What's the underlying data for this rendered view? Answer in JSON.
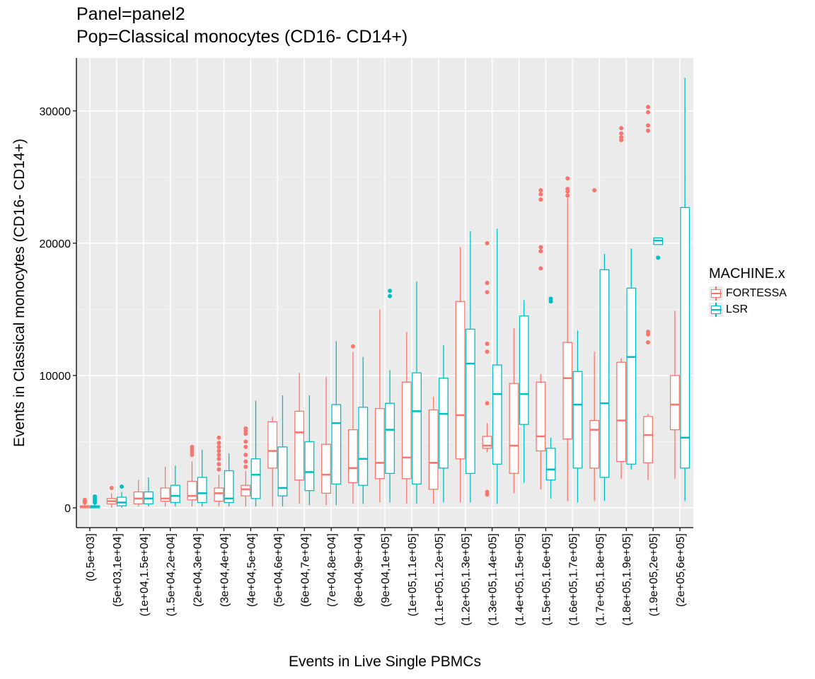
{
  "title_lines": [
    "Panel=panel2",
    "Pop=Classical monocytes (CD16- CD14+)"
  ],
  "legend": {
    "title": "MACHINE.x",
    "items": [
      {
        "label": "FORTESSA",
        "color": "#F8766D"
      },
      {
        "label": "LSR",
        "color": "#00BFC4"
      }
    ]
  },
  "chart_data": {
    "type": "boxplot",
    "xlabel": "Events in Live Single PBMCs",
    "ylabel": "Events in Classical monocytes (CD16- CD14+)",
    "ylim": [
      -1500,
      34000
    ],
    "yticks": [
      0,
      10000,
      20000,
      30000
    ],
    "grid": true,
    "legend_position": "right",
    "categories": [
      "(0,5e+03]",
      "(5e+03,1e+04]",
      "(1e+04,1.5e+04]",
      "(1.5e+04,2e+04]",
      "(2e+04,3e+04]",
      "(3e+04,4e+04]",
      "(4e+04,5e+04]",
      "(5e+04,6e+04]",
      "(6e+04,7e+04]",
      "(7e+04,8e+04]",
      "(8e+04,9e+04]",
      "(9e+04,1e+05]",
      "(1e+05,1.1e+05]",
      "(1.1e+05,1.2e+05]",
      "(1.2e+05,1.3e+05]",
      "(1.3e+05,1.4e+05]",
      "(1.4e+05,1.5e+05]",
      "(1.5e+05,1.6e+05]",
      "(1.6e+05,1.7e+05]",
      "(1.7e+05,1.8e+05]",
      "(1.8e+05,1.9e+05]",
      "(1.9e+05,2e+05]",
      "(2e+05,6e+05]"
    ],
    "series": [
      {
        "name": "FORTESSA",
        "color": "#F8766D",
        "boxes": [
          {
            "min": 0,
            "q1": 0,
            "median": 100,
            "q3": 150,
            "max": 300,
            "outliers": [
              400,
              500,
              600
            ]
          },
          {
            "min": 0,
            "q1": 300,
            "median": 500,
            "q3": 700,
            "max": 1100,
            "outliers": [
              1500
            ]
          },
          {
            "min": 100,
            "q1": 300,
            "median": 700,
            "q3": 1200,
            "max": 2100,
            "outliers": []
          },
          {
            "min": 100,
            "q1": 500,
            "median": 700,
            "q3": 1500,
            "max": 3100,
            "outliers": []
          },
          {
            "min": 100,
            "q1": 600,
            "median": 900,
            "q3": 2000,
            "max": 3500,
            "outliers": [
              4000,
              4200,
              4400,
              4600
            ]
          },
          {
            "min": 100,
            "q1": 500,
            "median": 1100,
            "q3": 1500,
            "max": 2500,
            "outliers": [
              2900,
              3300,
              3700,
              4000,
              4300,
              4600,
              4900,
              5300
            ]
          },
          {
            "min": 100,
            "q1": 900,
            "median": 1400,
            "q3": 1700,
            "max": 2800,
            "outliers": [
              3100,
              3500,
              4000,
              4600,
              5000,
              5600,
              5800,
              6000
            ]
          },
          {
            "min": 100,
            "q1": 3000,
            "median": 4300,
            "q3": 6500,
            "max": 6900,
            "outliers": []
          },
          {
            "min": 300,
            "q1": 2100,
            "median": 5700,
            "q3": 7300,
            "max": 10200,
            "outliers": []
          },
          {
            "min": 200,
            "q1": 1100,
            "median": 2500,
            "q3": 4800,
            "max": 9900,
            "outliers": []
          },
          {
            "min": 300,
            "q1": 1900,
            "median": 3000,
            "q3": 5900,
            "max": 11800,
            "outliers": [
              12200
            ]
          },
          {
            "min": 400,
            "q1": 2200,
            "median": 3400,
            "q3": 7500,
            "max": 15000,
            "outliers": []
          },
          {
            "min": 300,
            "q1": 2200,
            "median": 3800,
            "q3": 9500,
            "max": 13300,
            "outliers": []
          },
          {
            "min": 300,
            "q1": 1400,
            "median": 3400,
            "q3": 7400,
            "max": 8400,
            "outliers": []
          },
          {
            "min": 400,
            "q1": 3700,
            "median": 7000,
            "q3": 15600,
            "max": 19700,
            "outliers": []
          },
          {
            "min": 4200,
            "q1": 4500,
            "median": 4700,
            "q3": 5400,
            "max": 6400,
            "outliers": [
              1000,
              1200,
              7900,
              11800,
              12400,
              16300,
              17000,
              20000
            ]
          },
          {
            "min": 1100,
            "q1": 2600,
            "median": 4700,
            "q3": 9400,
            "max": 13600,
            "outliers": []
          },
          {
            "min": 1400,
            "q1": 4300,
            "median": 5400,
            "q3": 9500,
            "max": 10100,
            "outliers": [
              18100,
              19400,
              19700,
              23300,
              23700,
              24000
            ]
          },
          {
            "min": 500,
            "q1": 5200,
            "median": 9800,
            "q3": 12500,
            "max": 23400,
            "outliers": [
              23600,
              23900,
              24100,
              24900
            ]
          },
          {
            "min": 500,
            "q1": 3000,
            "median": 5900,
            "q3": 6600,
            "max": 11800,
            "outliers": [
              24000
            ]
          },
          {
            "min": 2200,
            "q1": 3500,
            "median": 6600,
            "q3": 11000,
            "max": 11300,
            "outliers": [
              27800,
              28000,
              28300,
              28700
            ]
          },
          {
            "min": 2100,
            "q1": 3400,
            "median": 5500,
            "q3": 6900,
            "max": 7100,
            "outliers": [
              12500,
              13100,
              13300,
              28500,
              28900,
              29900,
              30300
            ]
          },
          {
            "min": 2200,
            "q1": 5900,
            "median": 7800,
            "q3": 10000,
            "max": 14900,
            "outliers": []
          }
        ]
      },
      {
        "name": "LSR",
        "color": "#00BFC4",
        "boxes": [
          {
            "min": 0,
            "q1": 0,
            "median": 100,
            "q3": 150,
            "max": 300,
            "outliers": [
              400,
              550,
              700,
              850
            ]
          },
          {
            "min": 0,
            "q1": 150,
            "median": 400,
            "q3": 800,
            "max": 1200,
            "outliers": [
              1600
            ]
          },
          {
            "min": 100,
            "q1": 300,
            "median": 700,
            "q3": 1200,
            "max": 2300,
            "outliers": []
          },
          {
            "min": 100,
            "q1": 400,
            "median": 900,
            "q3": 1700,
            "max": 3200,
            "outliers": []
          },
          {
            "min": 100,
            "q1": 400,
            "median": 1100,
            "q3": 2300,
            "max": 4400,
            "outliers": []
          },
          {
            "min": 100,
            "q1": 400,
            "median": 700,
            "q3": 2800,
            "max": 4100,
            "outliers": []
          },
          {
            "min": 100,
            "q1": 700,
            "median": 2500,
            "q3": 3700,
            "max": 8100,
            "outliers": []
          },
          {
            "min": 100,
            "q1": 900,
            "median": 1500,
            "q3": 4600,
            "max": 8500,
            "outliers": []
          },
          {
            "min": 200,
            "q1": 1300,
            "median": 2700,
            "q3": 5000,
            "max": 8500,
            "outliers": []
          },
          {
            "min": 200,
            "q1": 1800,
            "median": 6400,
            "q3": 7800,
            "max": 12600,
            "outliers": []
          },
          {
            "min": 300,
            "q1": 1700,
            "median": 3700,
            "q3": 7600,
            "max": 11400,
            "outliers": []
          },
          {
            "min": 400,
            "q1": 2600,
            "median": 5900,
            "q3": 7900,
            "max": 10400,
            "outliers": [
              16000,
              16400
            ]
          },
          {
            "min": 300,
            "q1": 1800,
            "median": 7300,
            "q3": 10200,
            "max": 17100,
            "outliers": []
          },
          {
            "min": 400,
            "q1": 3000,
            "median": 7100,
            "q3": 9800,
            "max": 12300,
            "outliers": []
          },
          {
            "min": 400,
            "q1": 2600,
            "median": 10900,
            "q3": 13500,
            "max": 20900,
            "outliers": []
          },
          {
            "min": 300,
            "q1": 3300,
            "median": 8600,
            "q3": 10800,
            "max": 21100,
            "outliers": []
          },
          {
            "min": 1900,
            "q1": 6300,
            "median": 8600,
            "q3": 14500,
            "max": 15700,
            "outliers": []
          },
          {
            "min": 700,
            "q1": 2100,
            "median": 2900,
            "q3": 4500,
            "max": 5300,
            "outliers": [
              15600,
              15800
            ]
          },
          {
            "min": 400,
            "q1": 3000,
            "median": 7800,
            "q3": 10300,
            "max": 13400,
            "outliers": []
          },
          {
            "min": 500,
            "q1": 2300,
            "median": 7900,
            "q3": 18000,
            "max": 19200,
            "outliers": []
          },
          {
            "min": 2900,
            "q1": 3300,
            "median": 11400,
            "q3": 16600,
            "max": 19600,
            "outliers": []
          },
          {
            "min": 19900,
            "q1": 19900,
            "median": 20200,
            "q3": 20400,
            "max": 20400,
            "outliers": [
              18900
            ]
          },
          {
            "min": 500,
            "q1": 3000,
            "median": 5300,
            "q3": 22700,
            "max": 32500,
            "outliers": []
          }
        ]
      }
    ]
  }
}
